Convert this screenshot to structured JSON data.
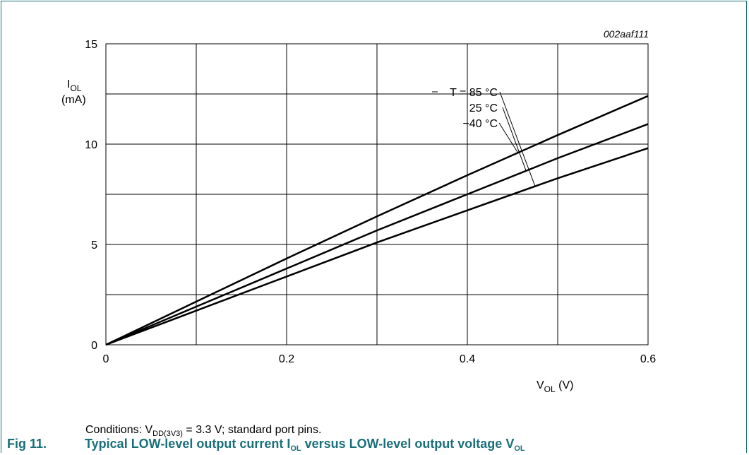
{
  "colors": {
    "frame": "#1a6f7a",
    "caption": "#1a6f7a",
    "curves": "#000000",
    "grid": "#000000"
  },
  "figure": {
    "number": "Fig 11.",
    "caption_parts": [
      "Typical LOW-level output current I",
      "OL",
      " versus LOW-level output voltage V",
      "OL"
    ]
  },
  "conditions": {
    "prefix": "Conditions: V",
    "sub": "DD(3V3)",
    "suffix": " = 3.3 V; standard port pins."
  },
  "chart_data": {
    "type": "line",
    "id_label": "002aaf111",
    "xlabel": {
      "main": "V",
      "sub": "OL",
      "unit": " (V)"
    },
    "ylabel": {
      "main": "I",
      "sub": "OL",
      "unit": "(mA)"
    },
    "xlim": [
      0,
      0.6
    ],
    "ylim": [
      0,
      15
    ],
    "x_ticks": [
      0,
      0.2,
      0.4,
      0.6
    ],
    "x_tick_labels": [
      "0",
      "0.2",
      "0.4",
      "0.6"
    ],
    "y_ticks": [
      0,
      5,
      10,
      15
    ],
    "y_tick_labels": [
      "0",
      "5",
      "10",
      "15"
    ],
    "x_grid": [
      0,
      0.1,
      0.2,
      0.3,
      0.4,
      0.5,
      0.6
    ],
    "y_grid": [
      0,
      2.5,
      5,
      7.5,
      10,
      12.5,
      15
    ],
    "grid": true,
    "series": [
      {
        "name": "T = 85 °C",
        "x": [
          0,
          0.1,
          0.2,
          0.3,
          0.4,
          0.5,
          0.6
        ],
        "y": [
          0,
          1.7,
          3.4,
          5.1,
          6.7,
          8.3,
          9.8
        ]
      },
      {
        "name": "25 °C",
        "x": [
          0,
          0.1,
          0.2,
          0.3,
          0.4,
          0.5,
          0.6
        ],
        "y": [
          0,
          1.9,
          3.8,
          5.7,
          7.5,
          9.3,
          11.0
        ]
      },
      {
        "name": "−40 °C",
        "x": [
          0,
          0.1,
          0.2,
          0.3,
          0.4,
          0.5,
          0.6
        ],
        "y": [
          0,
          2.15,
          4.3,
          6.4,
          8.45,
          10.45,
          12.4
        ]
      }
    ],
    "annotations": [
      {
        "text": "T = 85 °C",
        "series": 0,
        "point_x": 0.475
      },
      {
        "text": "25 °C",
        "series": 1,
        "point_x": 0.465
      },
      {
        "text": "−40 °C",
        "series": 2,
        "point_x": 0.456
      }
    ]
  }
}
